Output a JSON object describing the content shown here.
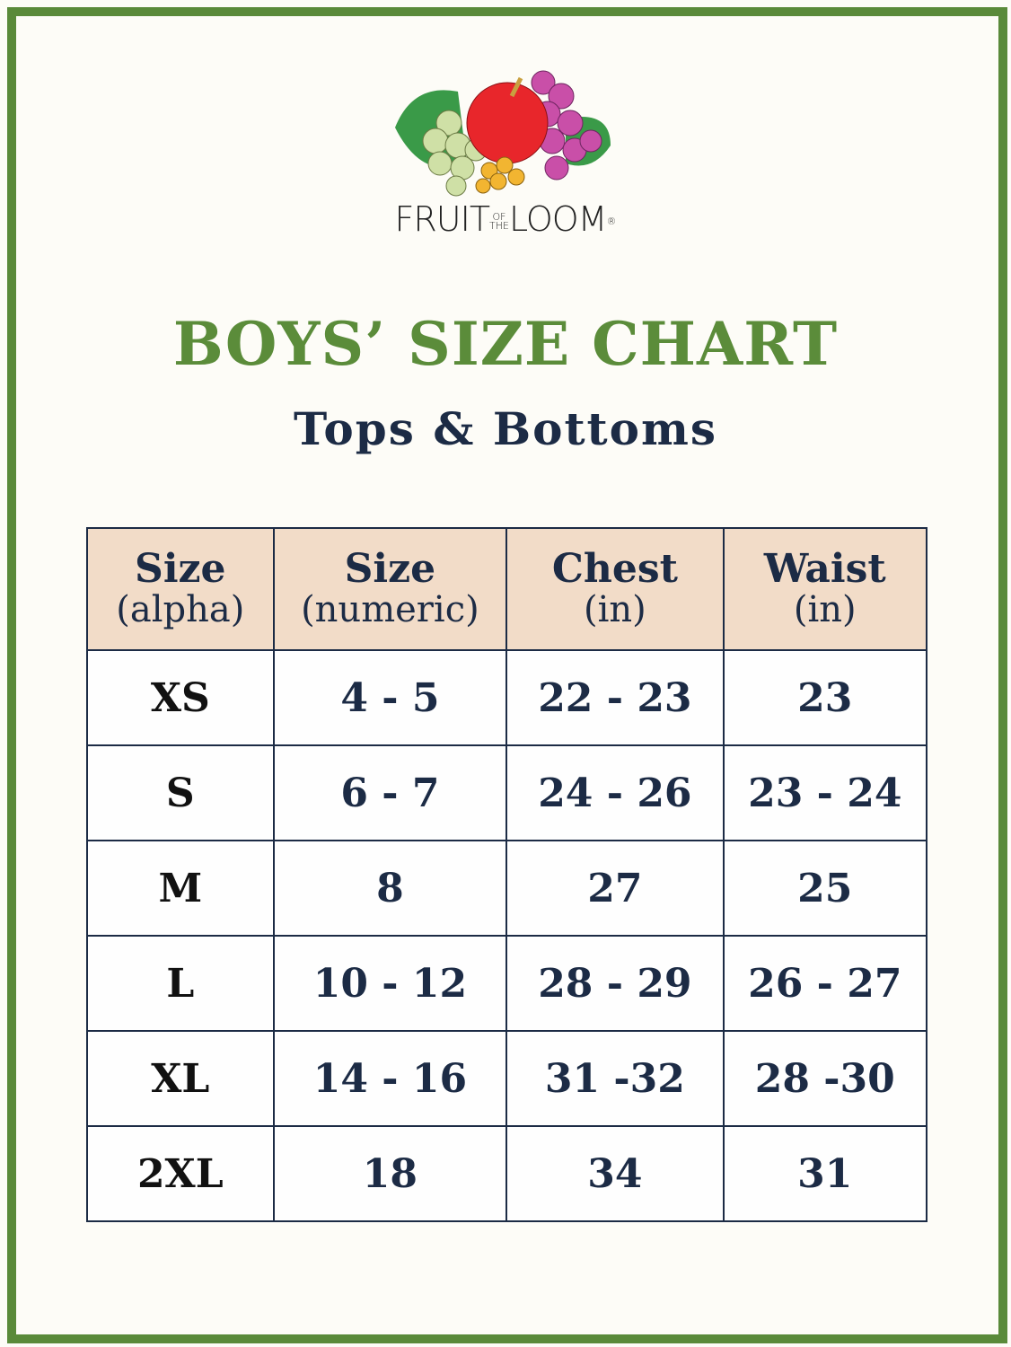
{
  "colors": {
    "frame": "#5a8a3a",
    "title": "#5b8c3a",
    "text": "#1c2b45",
    "header_bg": "#f2dcc8"
  },
  "logo": {
    "brand_left": "FRUIT",
    "brand_of": "OF",
    "brand_the": "THE",
    "brand_right": "LOOM",
    "registered": "®"
  },
  "title": "BOYS’ SIZE CHART",
  "subtitle": "Tops & Bottoms",
  "table": {
    "headers": [
      {
        "main": "Size",
        "sub": "(alpha)"
      },
      {
        "main": "Size",
        "sub": "(numeric)"
      },
      {
        "main": "Chest",
        "sub": "(in)"
      },
      {
        "main": "Waist",
        "sub": "(in)"
      }
    ],
    "rows": [
      [
        "XS",
        "4 - 5",
        "22 - 23",
        "23"
      ],
      [
        "S",
        "6 - 7",
        "24 - 26",
        "23 - 24"
      ],
      [
        "M",
        "8",
        "27",
        "25"
      ],
      [
        "L",
        "10 - 12",
        "28 - 29",
        "26 - 27"
      ],
      [
        "XL",
        "14 - 16",
        "31 -32",
        "28 -30"
      ],
      [
        "2XL",
        "18",
        "34",
        "31"
      ]
    ]
  }
}
